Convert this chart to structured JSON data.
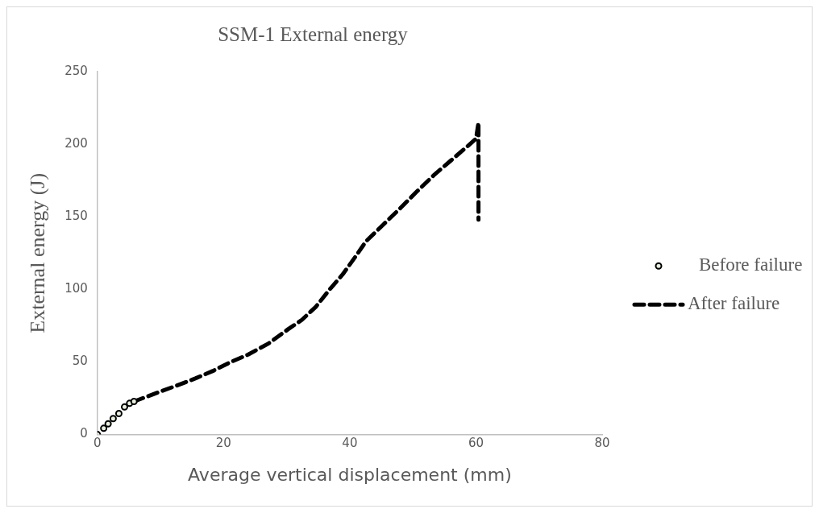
{
  "chart_data": {
    "type": "scatter",
    "title": "SSM-1 External energy",
    "xlabel": "Average vertical displacement (mm)",
    "ylabel": "External energy (J)",
    "xlim": [
      0,
      80
    ],
    "xticks": [
      0,
      20,
      40,
      60,
      80
    ],
    "ylim": [
      0,
      250
    ],
    "yticks": [
      0,
      50,
      100,
      150,
      200,
      250
    ],
    "grid": false,
    "legend": "right",
    "series": [
      {
        "name": "Before failure",
        "type": "scatter",
        "color": "#000000",
        "marker": "circle",
        "x": [
          0,
          1,
          1.7,
          2.5,
          3.4,
          4.3,
          5.1,
          5.8
        ],
        "values": [
          0,
          4.3,
          7.4,
          11,
          14.5,
          19,
          21.5,
          22.8
        ]
      },
      {
        "name": "After failure",
        "type": "line",
        "color": "#000000",
        "marker": "none",
        "line_style": "dashed",
        "x": [
          5.8,
          9.4,
          12.6,
          15.6,
          18.3,
          21.2,
          23.9,
          27.1,
          30.3,
          32.4,
          34.6,
          36.7,
          38.9,
          41,
          42.6,
          45.3,
          48,
          50.6,
          53.3,
          56,
          58.7,
          60,
          60.4,
          60.4
        ],
        "values": [
          22.8,
          28.7,
          33.8,
          38.8,
          43.8,
          50.1,
          55.1,
          62.7,
          72.8,
          79,
          87.9,
          99.4,
          110.5,
          123.2,
          133.3,
          144.6,
          155.9,
          167.3,
          178.6,
          188.7,
          198.8,
          203.8,
          215,
          148
        ]
      }
    ]
  }
}
